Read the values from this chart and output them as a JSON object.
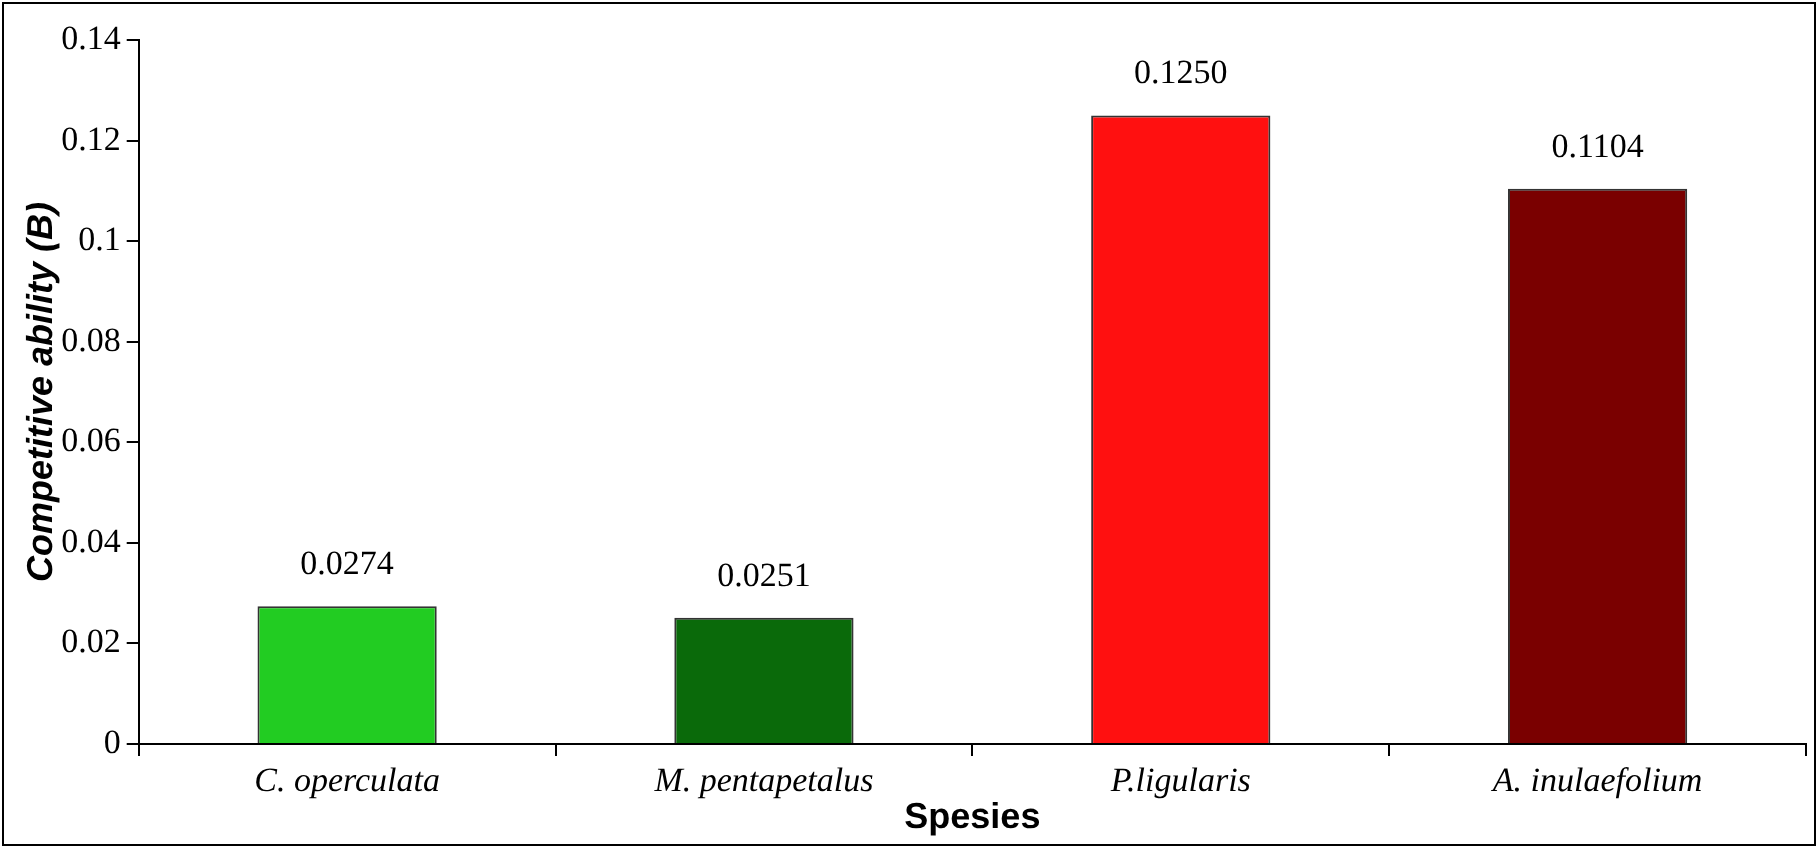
{
  "chart_data": {
    "type": "bar",
    "xlabel": "Spesies",
    "ylabel": "Competitive ability (B)",
    "categories": [
      "C. operculata",
      "M. pentapetalus",
      "P.ligularis",
      "A. inulaefolium"
    ],
    "values": [
      0.0274,
      0.0251,
      0.125,
      0.1104
    ],
    "value_labels": [
      "0.0274",
      "0.0251",
      "0.1250",
      "0.1104"
    ],
    "colors": [
      "#22cc22",
      "#0a6a0a",
      "#ff1010",
      "#7a0000"
    ],
    "ylim": [
      0,
      0.14
    ],
    "yticks": [
      0,
      0.02,
      0.04,
      0.06,
      0.08,
      0.1,
      0.12,
      0.14
    ],
    "grid": false,
    "legend": false
  }
}
